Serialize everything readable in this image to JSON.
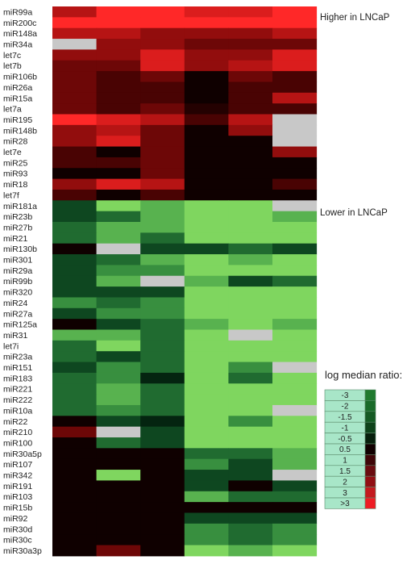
{
  "chart_data": {
    "type": "heatmap",
    "rows": [
      "miR99a",
      "miR200c",
      "miR148a",
      "miR34a",
      "let7c",
      "let7b",
      "miR106b",
      "miR26a",
      "miR15a",
      "let7a",
      "miR195",
      "miR148b",
      "miR28",
      "let7e",
      "miR25",
      "miR93",
      "miR18",
      "let7f",
      "miR181a",
      "miR23b",
      "miR27b",
      "miR21",
      "miR130b",
      "miR301",
      "miR29a",
      "miR99b",
      "miR320",
      "miR24",
      "miR27a",
      "miR125a",
      "miR31",
      "let7i",
      "miR23a",
      "miR151",
      "miR183",
      "miR221",
      "miR222",
      "miR10a",
      "miR22",
      "miR210",
      "miR100",
      "miR30a5p",
      "miR107",
      "miR342",
      "miR191",
      "miR103",
      "miR15b",
      "miR92",
      "miR30d",
      "miR30c",
      "miR30a3p"
    ],
    "columns": 6,
    "missing": "NA",
    "values": [
      [
        2.5,
        3.5,
        3.5,
        3,
        3,
        3.5
      ],
      [
        3.5,
        3.5,
        3.5,
        3.5,
        3.5,
        3.5
      ],
      [
        2.5,
        2.5,
        2,
        2,
        2,
        2.5
      ],
      [
        "NA",
        2,
        2,
        1.5,
        1.5,
        1.5
      ],
      [
        2,
        2,
        3,
        2,
        2,
        3
      ],
      [
        1.5,
        1.5,
        3,
        2,
        2.5,
        3
      ],
      [
        1.5,
        1,
        1.5,
        0.2,
        1.5,
        1
      ],
      [
        1.5,
        1,
        1,
        0.2,
        1,
        1
      ],
      [
        1.5,
        1,
        1,
        0.2,
        1,
        2.5
      ],
      [
        1.5,
        1,
        1.5,
        0.5,
        1,
        1
      ],
      [
        3.5,
        3,
        2.5,
        1,
        2.5,
        "NA"
      ],
      [
        2,
        2.5,
        1.5,
        0.2,
        2,
        "NA"
      ],
      [
        2,
        3,
        1.5,
        0.2,
        0.2,
        "NA"
      ],
      [
        1,
        0.2,
        1.5,
        0.2,
        0.2,
        2
      ],
      [
        1,
        1,
        1.5,
        0.2,
        0.2,
        0.2
      ],
      [
        0.2,
        0.2,
        1.5,
        0.2,
        0.2,
        0.2
      ],
      [
        2,
        3,
        2.5,
        0.2,
        0.2,
        1
      ],
      [
        1,
        0.2,
        1,
        0.2,
        0.2,
        0.2
      ],
      [
        -1,
        -3,
        -2.5,
        -3,
        -3,
        "NA"
      ],
      [
        -1,
        -1.5,
        -2.5,
        -3,
        -3,
        -2.5
      ],
      [
        -1.5,
        -2.5,
        -2.5,
        -3,
        -3,
        -3
      ],
      [
        -1.5,
        -2.5,
        -1.5,
        -3,
        -3,
        -3
      ],
      [
        0.2,
        "NA",
        -1,
        -1,
        -1.5,
        -1
      ],
      [
        -1,
        -1.5,
        -2.5,
        -3,
        -2.5,
        -3
      ],
      [
        -1,
        -2,
        -2,
        -3,
        -3,
        -3
      ],
      [
        -1,
        -2.5,
        "NA",
        -2.5,
        -1,
        -1.5
      ],
      [
        -1,
        -1,
        -1,
        -3,
        -3,
        -3
      ],
      [
        -2,
        -1.5,
        -2,
        -3,
        -3,
        -3
      ],
      [
        -1,
        -2,
        -2,
        -3,
        -3,
        -3
      ],
      [
        0.2,
        -1,
        -1.5,
        -2.5,
        -3,
        -2.5
      ],
      [
        -2.5,
        -2.5,
        -1.5,
        -3,
        "NA",
        -3
      ],
      [
        -1.5,
        -3,
        -1.5,
        -3,
        -3,
        -3
      ],
      [
        -1.5,
        -1,
        -1.5,
        -3,
        -3,
        -3
      ],
      [
        -1,
        -2,
        -1.5,
        -3,
        -2,
        "NA"
      ],
      [
        -1.5,
        -2,
        -0.5,
        -3,
        -1.5,
        -3
      ],
      [
        -1.5,
        -2.5,
        -1.5,
        -3,
        -3,
        -3
      ],
      [
        -1.5,
        -2.5,
        -1.5,
        -3,
        -3,
        -3
      ],
      [
        -1.5,
        -2,
        -1.5,
        -3,
        -3,
        "NA"
      ],
      [
        0.2,
        -1,
        -0.5,
        -3,
        -2,
        -3
      ],
      [
        1.5,
        "NA",
        -1,
        -3,
        -3,
        -3
      ],
      [
        0.2,
        -1.5,
        -1,
        -3,
        -3,
        -3
      ],
      [
        0.2,
        0.2,
        0.2,
        -1.5,
        -1.5,
        -2.5
      ],
      [
        0.2,
        0.2,
        0.2,
        -2,
        -1,
        -2.5
      ],
      [
        0.2,
        -3,
        0.2,
        -1,
        -1,
        "NA"
      ],
      [
        0.2,
        0.2,
        0.2,
        -1,
        0.2,
        -1
      ],
      [
        0.2,
        0.2,
        0.2,
        -2.5,
        -1.5,
        -1.5
      ],
      [
        0.2,
        0.2,
        0.2,
        0.2,
        0.2,
        0.2
      ],
      [
        0.2,
        0.2,
        0.2,
        -1,
        -1,
        -1
      ],
      [
        0.2,
        0.2,
        0.2,
        -2,
        -1.5,
        -2
      ],
      [
        0.2,
        0.2,
        0.2,
        -2,
        -1.5,
        -2
      ],
      [
        0.2,
        1.5,
        0.2,
        -3,
        -2.5,
        -3
      ]
    ],
    "annotations": [
      "Higher in LNCaP",
      "Lower in LNCaP"
    ],
    "legend": {
      "title": "log median ratio:",
      "levels": [
        "-3",
        "-2",
        "-1.5",
        "-1",
        "-0.5",
        "0.5",
        "1",
        "1.5",
        "2",
        "3",
        ">3"
      ],
      "colors": [
        "#1f7a2e",
        "#1a6b2a",
        "#155a24",
        "#0e421a",
        "#071f0c",
        "#110000",
        "#3f0608",
        "#6a0c10",
        "#920f14",
        "#c41a1f",
        "#ee1c24"
      ]
    },
    "colors": {
      "na": "#c8c8c8",
      "neutral": "#000000",
      "high": "#ff2a2a",
      "low": "#7fd65f"
    }
  }
}
